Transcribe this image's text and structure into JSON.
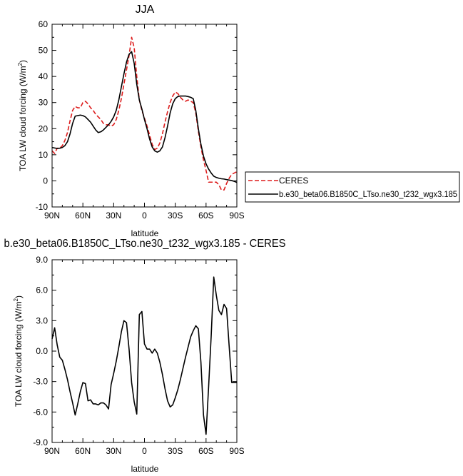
{
  "chart_data": [
    {
      "type": "line",
      "title": "JJA",
      "xlabel": "latitude",
      "ylabel": "TOA LW cloud forcing (W/m",
      "ylabel_sup": "2",
      "ylabel_tail": ")",
      "xlim": [
        90,
        -90
      ],
      "ylim": [
        -10,
        60
      ],
      "x_ticks": [
        90,
        60,
        30,
        0,
        -30,
        -60,
        -90
      ],
      "x_tick_labels": [
        "90N",
        "60N",
        "30N",
        "0",
        "30S",
        "60S",
        "90S"
      ],
      "y_ticks": [
        -10,
        0,
        10,
        20,
        30,
        40,
        50,
        60
      ],
      "y_tick_labels": [
        "-10",
        "0",
        "10",
        "20",
        "30",
        "40",
        "50",
        "60"
      ],
      "legend_position": "right",
      "series": [
        {
          "name": "CERES",
          "color": "#dd1c1c",
          "dash": "dashed",
          "x": [
            90,
            87.5,
            85,
            82.5,
            80,
            77.5,
            75,
            72.5,
            70,
            67.5,
            65,
            62.5,
            60,
            57.5,
            55,
            52.5,
            50,
            47.5,
            45,
            42.5,
            40,
            37.5,
            35,
            32.5,
            30,
            27.5,
            25,
            22.5,
            20,
            17.5,
            15,
            12.5,
            10,
            7.5,
            5,
            2.5,
            0,
            -2.5,
            -5,
            -7.5,
            -10,
            -12.5,
            -15,
            -17.5,
            -20,
            -22.5,
            -25,
            -27.5,
            -30,
            -32.5,
            -35,
            -37.5,
            -40,
            -42.5,
            -45,
            -47.5,
            -50,
            -52.5,
            -55,
            -57.5,
            -60,
            -62.5,
            -65,
            -67.5,
            -70,
            -72.5,
            -75,
            -77.5,
            -80,
            -82.5,
            -85,
            -87.5,
            -90
          ],
          "values": [
            11.5,
            10.5,
            12.5,
            12.5,
            13.5,
            15.5,
            18.5,
            23,
            27,
            28.5,
            28,
            28,
            30,
            30.5,
            29.5,
            28,
            27,
            25.5,
            24.5,
            23.5,
            22,
            21.5,
            21.5,
            21,
            21.5,
            23.5,
            27,
            31.5,
            37,
            42.5,
            48,
            55,
            51,
            40,
            31,
            27,
            24,
            21,
            17.5,
            14,
            12,
            12.5,
            14.5,
            18,
            22.5,
            26.5,
            30,
            32.5,
            34,
            33.5,
            32,
            31,
            30.5,
            31,
            30.5,
            30,
            26,
            19,
            13,
            8,
            4,
            -0.5,
            -0.5,
            -0.5,
            -0.5,
            -1.5,
            -3.5,
            -3.5,
            -1,
            1,
            2.5,
            3,
            3.5
          ]
        },
        {
          "name": "b.e30_beta06.B1850C_LTso.ne30_t232_wgx3.185",
          "color": "#000000",
          "dash": "solid",
          "x": [
            90,
            87.5,
            85,
            82.5,
            80,
            77.5,
            75,
            72.5,
            70,
            67.5,
            65,
            62.5,
            60,
            57.5,
            55,
            52.5,
            50,
            47.5,
            45,
            42.5,
            40,
            37.5,
            35,
            32.5,
            30,
            27.5,
            25,
            22.5,
            20,
            17.5,
            15,
            12.5,
            10,
            7.5,
            5,
            2.5,
            0,
            -2.5,
            -5,
            -7.5,
            -10,
            -12.5,
            -15,
            -17.5,
            -20,
            -22.5,
            -25,
            -27.5,
            -30,
            -32.5,
            -35,
            -37.5,
            -40,
            -42.5,
            -45,
            -47.5,
            -50,
            -52.5,
            -55,
            -57.5,
            -60,
            -62.5,
            -65,
            -67.5,
            -70,
            -72.5,
            -75,
            -77.5,
            -80,
            -82.5,
            -85,
            -87.5,
            -90
          ],
          "values": [
            12.8,
            12.6,
            12.4,
            12.5,
            12.8,
            13.5,
            15,
            18,
            22,
            24.8,
            25,
            25.2,
            25,
            24.5,
            23.5,
            22.5,
            21,
            19.5,
            18.5,
            18.8,
            19.5,
            20.5,
            21.5,
            22.8,
            24.5,
            27,
            31,
            36,
            41,
            45.5,
            48.5,
            49.5,
            45,
            37,
            31,
            27.5,
            23.5,
            20,
            16,
            13,
            11.5,
            11,
            11.5,
            13,
            16.5,
            21,
            26,
            29.5,
            31.5,
            32.3,
            32.5,
            32.5,
            32.5,
            32.3,
            32,
            31.5,
            27,
            20,
            14,
            9.5,
            6.5,
            4.5,
            3,
            1.8,
            1.3,
            1,
            0.8,
            0.7,
            0.5,
            0.3,
            0.1,
            -0.2,
            -0.6
          ]
        }
      ]
    },
    {
      "type": "line",
      "title": "b.e30_beta06.B1850C_LTso.ne30_t232_wgx3.185 - CERES",
      "xlabel": "latitude",
      "ylabel": "TOA LW cloud forcing (W/m",
      "ylabel_sup": "2",
      "ylabel_tail": ")",
      "xlim": [
        90,
        -90
      ],
      "ylim": [
        -9,
        9
      ],
      "x_ticks": [
        90,
        60,
        30,
        0,
        -30,
        -60,
        -90
      ],
      "x_tick_labels": [
        "90N",
        "60N",
        "30N",
        "0",
        "30S",
        "60S",
        "90S"
      ],
      "y_ticks": [
        -9,
        -6,
        -3,
        0,
        3,
        6,
        9
      ],
      "y_tick_labels": [
        "-9.0",
        "-6.0",
        "-3.0",
        "0.0",
        "3.0",
        "6.0",
        "9.0"
      ],
      "series": [
        {
          "color": "#000000",
          "dash": "solid",
          "x": [
            90,
            87.5,
            85,
            82.5,
            80,
            77.5,
            75,
            72.5,
            70,
            67.5,
            65,
            62.5,
            60,
            57.5,
            55,
            52.5,
            50,
            47.5,
            45,
            42.5,
            40,
            37.5,
            35,
            32.5,
            30,
            27.5,
            25,
            22.5,
            20,
            17.5,
            15,
            12.5,
            10,
            7.5,
            5,
            2.5,
            0,
            -2.5,
            -5,
            -7.5,
            -10,
            -12.5,
            -15,
            -17.5,
            -20,
            -22.5,
            -25,
            -27.5,
            -30,
            -32.5,
            -35,
            -37.5,
            -40,
            -42.5,
            -45,
            -47.5,
            -50,
            -52.5,
            -55,
            -57.5,
            -60,
            -62.5,
            -65,
            -67.5,
            -70,
            -72.5,
            -75,
            -77.5,
            -80,
            -82.5,
            -85,
            -87.5,
            -90
          ],
          "values": [
            1.2,
            2.3,
            0.6,
            -0.6,
            -0.9,
            -1.8,
            -2.8,
            -4.0,
            -5.1,
            -6.3,
            -5.2,
            -4.0,
            -3.1,
            -3.2,
            -4.9,
            -4.8,
            -5.2,
            -5.2,
            -5.3,
            -5.1,
            -5.1,
            -5.3,
            -5.7,
            -3.3,
            -2.2,
            -1.0,
            0.4,
            1.9,
            3.0,
            2.8,
            0.2,
            -3.1,
            -5.0,
            -6.2,
            3.6,
            3.9,
            0.7,
            0.2,
            0.2,
            -0.2,
            0.2,
            -0.2,
            -1.1,
            -2.3,
            -3.7,
            -4.9,
            -5.5,
            -5.3,
            -4.6,
            -3.8,
            -2.8,
            -1.7,
            -0.6,
            0.4,
            1.4,
            2.0,
            2.5,
            2.2,
            -1.1,
            -6.3,
            -8.2,
            -3.5,
            1.5,
            7.3,
            5.5,
            4.0,
            3.6,
            4.6,
            4.2,
            0.5,
            -3.1,
            -3.1,
            -3.1
          ]
        }
      ]
    }
  ]
}
